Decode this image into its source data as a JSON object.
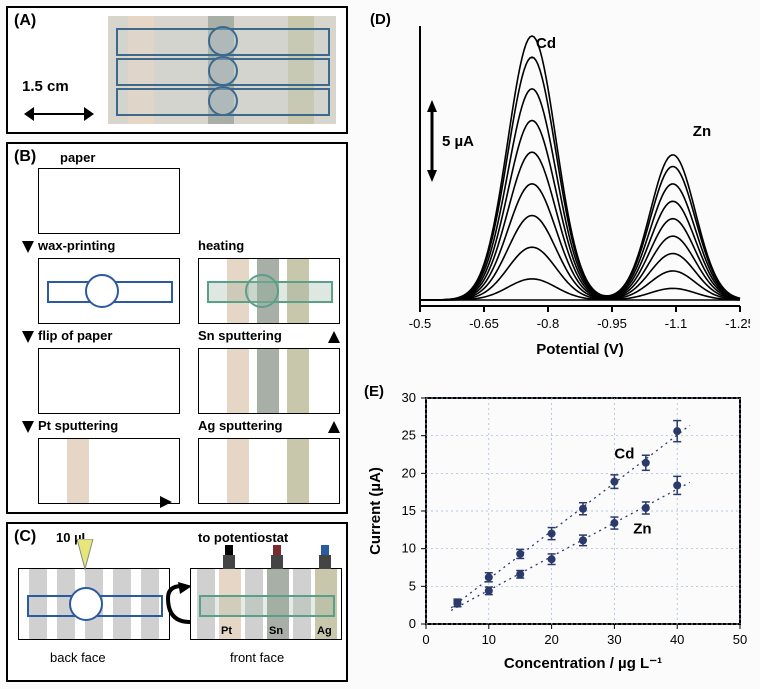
{
  "labels": {
    "A": "(A)",
    "B": "(B)",
    "C": "(C)",
    "D": "(D)",
    "E": "(E)",
    "scale": "1.5 cm",
    "paper": "paper",
    "wax": "wax-printing",
    "flip": "flip of paper",
    "pt": "Pt sputtering",
    "heat": "heating",
    "sn": "Sn sputtering",
    "ag": "Ag sputtering",
    "drop": "10 µL",
    "pot": "to potentiostat",
    "back": "back face",
    "front": "front face",
    "Pt": "Pt",
    "Sn": "Sn",
    "Ag": "Ag",
    "Cd": "Cd",
    "Zn": "Zn",
    "yD": "5 µA",
    "xD": "Potential (V)",
    "yE": "Current (µA)",
    "xE": "Concentration / µg L⁻¹"
  },
  "colors": {
    "pt": "#e6d6c5",
    "sn": "#a8afa6",
    "ag": "#c9c7ab",
    "grid": "#9bb4d6",
    "marker": "#2a3a6a"
  },
  "panelD": {
    "xTicks": [
      "-0.5",
      "-0.65",
      "-0.8",
      "-0.95",
      "-1.1",
      "-1.25"
    ],
    "cd_peak_x": 0.35,
    "zn_peak_x": 0.79,
    "heights": [
      2,
      5,
      8,
      11,
      14,
      17,
      20,
      23,
      25
    ],
    "zn_scale": 0.55
  },
  "panelE": {
    "xTicks": [
      0,
      10,
      20,
      30,
      40,
      50
    ],
    "yTicks": [
      0,
      5,
      10,
      15,
      20,
      25,
      30
    ],
    "conc": [
      5,
      10,
      15,
      20,
      25,
      30,
      35,
      40
    ],
    "cd": [
      2.8,
      6.2,
      9.3,
      12.0,
      15.3,
      18.9,
      21.4,
      25.6
    ],
    "zn": [
      2.7,
      4.4,
      6.6,
      8.6,
      11.1,
      13.4,
      15.4,
      18.4
    ],
    "cdErr": [
      0.5,
      0.6,
      0.6,
      0.8,
      0.8,
      0.9,
      1.0,
      1.4
    ],
    "znErr": [
      0.4,
      0.5,
      0.5,
      0.7,
      0.7,
      0.8,
      0.8,
      1.2
    ]
  }
}
